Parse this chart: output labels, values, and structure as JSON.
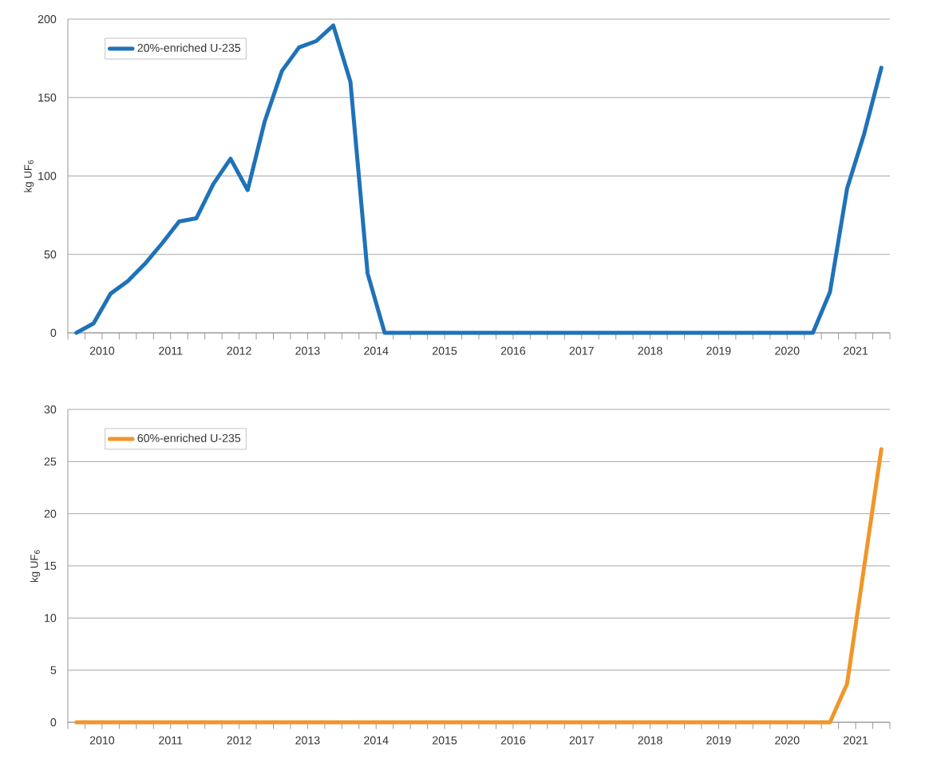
{
  "chart_data": [
    {
      "type": "line",
      "ylabel": "kg UF$_{6}$",
      "grid": "y",
      "legend": "top left",
      "xlim": [
        2010,
        2022
      ],
      "ylim": [
        0,
        200
      ],
      "yticks": [
        0,
        50,
        100,
        150,
        200
      ],
      "xticks": [
        {
          "value": 2010,
          "label": null
        },
        {
          "value": 2010.25,
          "label": null
        },
        {
          "value": 2010.5,
          "label": "2010"
        },
        {
          "value": 2010.75,
          "label": null
        },
        {
          "value": 2011,
          "label": null
        },
        {
          "value": 2011.25,
          "label": null
        },
        {
          "value": 2011.5,
          "label": "2011"
        },
        {
          "value": 2011.75,
          "label": null
        },
        {
          "value": 2012,
          "label": null
        },
        {
          "value": 2012.25,
          "label": null
        },
        {
          "value": 2012.5,
          "label": "2012"
        },
        {
          "value": 2012.75,
          "label": null
        },
        {
          "value": 2013,
          "label": null
        },
        {
          "value": 2013.25,
          "label": null
        },
        {
          "value": 2013.5,
          "label": "2013"
        },
        {
          "value": 2013.75,
          "label": null
        },
        {
          "value": 2014,
          "label": null
        },
        {
          "value": 2014.25,
          "label": null
        },
        {
          "value": 2014.5,
          "label": "2014"
        },
        {
          "value": 2014.75,
          "label": null
        },
        {
          "value": 2015,
          "label": null
        },
        {
          "value": 2015.25,
          "label": null
        },
        {
          "value": 2015.5,
          "label": "2015"
        },
        {
          "value": 2015.75,
          "label": null
        },
        {
          "value": 2016,
          "label": null
        },
        {
          "value": 2016.25,
          "label": null
        },
        {
          "value": 2016.5,
          "label": "2016"
        },
        {
          "value": 2016.75,
          "label": null
        },
        {
          "value": 2017,
          "label": null
        },
        {
          "value": 2017.25,
          "label": null
        },
        {
          "value": 2017.5,
          "label": "2017"
        },
        {
          "value": 2017.75,
          "label": null
        },
        {
          "value": 2018,
          "label": null
        },
        {
          "value": 2018.25,
          "label": null
        },
        {
          "value": 2018.5,
          "label": "2018"
        },
        {
          "value": 2018.75,
          "label": null
        },
        {
          "value": 2019,
          "label": null
        },
        {
          "value": 2019.25,
          "label": null
        },
        {
          "value": 2019.5,
          "label": "2019"
        },
        {
          "value": 2019.75,
          "label": null
        },
        {
          "value": 2020,
          "label": null
        },
        {
          "value": 2020.25,
          "label": null
        },
        {
          "value": 2020.5,
          "label": "2020"
        },
        {
          "value": 2020.75,
          "label": null
        },
        {
          "value": 2021,
          "label": null
        },
        {
          "value": 2021.25,
          "label": null
        },
        {
          "value": 2021.5,
          "label": "2021"
        },
        {
          "value": 2021.75,
          "label": null
        },
        {
          "value": 2022,
          "label": null
        }
      ],
      "series": [
        {
          "name": "20%-enriched U-235",
          "color": "#1f72b8",
          "x": [
            2010.125,
            2010.375,
            2010.625,
            2010.875,
            2011.125,
            2011.375,
            2011.625,
            2011.875,
            2012.125,
            2012.375,
            2012.625,
            2012.875,
            2013.125,
            2013.375,
            2013.625,
            2013.875,
            2014.125,
            2014.375,
            2014.625,
            2014.875,
            2015.125,
            2015.375,
            2015.625,
            2015.875,
            2016.125,
            2016.375,
            2016.625,
            2016.875,
            2017.125,
            2017.375,
            2017.625,
            2017.875,
            2018.125,
            2018.375,
            2018.625,
            2018.875,
            2019.125,
            2019.375,
            2019.625,
            2019.875,
            2020.125,
            2020.375,
            2020.625,
            2020.875,
            2021.125,
            2021.375,
            2021.625,
            2021.875
          ],
          "values": [
            0,
            6,
            25,
            33,
            44,
            57,
            71,
            73,
            95,
            111,
            91,
            135,
            167,
            182,
            186,
            196,
            160,
            38,
            0,
            0,
            0,
            0,
            0,
            0,
            0,
            0,
            0,
            0,
            0,
            0,
            0,
            0,
            0,
            0,
            0,
            0,
            0,
            0,
            0,
            0,
            0,
            0,
            0,
            0,
            26,
            92,
            127,
            169
          ]
        }
      ]
    },
    {
      "type": "line",
      "ylabel": "kg UF$_{6}$",
      "grid": "y",
      "legend": "top left",
      "xlim": [
        2010,
        2022
      ],
      "ylim": [
        0,
        30
      ],
      "yticks": [
        0,
        5,
        10,
        15,
        20,
        25,
        30
      ],
      "xticks": [
        {
          "value": 2010,
          "label": null
        },
        {
          "value": 2010.25,
          "label": null
        },
        {
          "value": 2010.5,
          "label": "2010"
        },
        {
          "value": 2010.75,
          "label": null
        },
        {
          "value": 2011,
          "label": null
        },
        {
          "value": 2011.25,
          "label": null
        },
        {
          "value": 2011.5,
          "label": "2011"
        },
        {
          "value": 2011.75,
          "label": null
        },
        {
          "value": 2012,
          "label": null
        },
        {
          "value": 2012.25,
          "label": null
        },
        {
          "value": 2012.5,
          "label": "2012"
        },
        {
          "value": 2012.75,
          "label": null
        },
        {
          "value": 2013,
          "label": null
        },
        {
          "value": 2013.25,
          "label": null
        },
        {
          "value": 2013.5,
          "label": "2013"
        },
        {
          "value": 2013.75,
          "label": null
        },
        {
          "value": 2014,
          "label": null
        },
        {
          "value": 2014.25,
          "label": null
        },
        {
          "value": 2014.5,
          "label": "2014"
        },
        {
          "value": 2014.75,
          "label": null
        },
        {
          "value": 2015,
          "label": null
        },
        {
          "value": 2015.25,
          "label": null
        },
        {
          "value": 2015.5,
          "label": "2015"
        },
        {
          "value": 2015.75,
          "label": null
        },
        {
          "value": 2016,
          "label": null
        },
        {
          "value": 2016.25,
          "label": null
        },
        {
          "value": 2016.5,
          "label": "2016"
        },
        {
          "value": 2016.75,
          "label": null
        },
        {
          "value": 2017,
          "label": null
        },
        {
          "value": 2017.25,
          "label": null
        },
        {
          "value": 2017.5,
          "label": "2017"
        },
        {
          "value": 2017.75,
          "label": null
        },
        {
          "value": 2018,
          "label": null
        },
        {
          "value": 2018.25,
          "label": null
        },
        {
          "value": 2018.5,
          "label": "2018"
        },
        {
          "value": 2018.75,
          "label": null
        },
        {
          "value": 2019,
          "label": null
        },
        {
          "value": 2019.25,
          "label": null
        },
        {
          "value": 2019.5,
          "label": "2019"
        },
        {
          "value": 2019.75,
          "label": null
        },
        {
          "value": 2020,
          "label": null
        },
        {
          "value": 2020.25,
          "label": null
        },
        {
          "value": 2020.5,
          "label": "2020"
        },
        {
          "value": 2020.75,
          "label": null
        },
        {
          "value": 2021,
          "label": null
        },
        {
          "value": 2021.25,
          "label": null
        },
        {
          "value": 2021.5,
          "label": "2021"
        },
        {
          "value": 2021.75,
          "label": null
        },
        {
          "value": 2022,
          "label": null
        }
      ],
      "series": [
        {
          "name": "60%-enriched U-235",
          "color": "#f0962a",
          "x": [
            2010.125,
            2010.375,
            2010.625,
            2010.875,
            2011.125,
            2011.375,
            2011.625,
            2011.875,
            2012.125,
            2012.375,
            2012.625,
            2012.875,
            2013.125,
            2013.375,
            2013.625,
            2013.875,
            2014.125,
            2014.375,
            2014.625,
            2014.875,
            2015.125,
            2015.375,
            2015.625,
            2015.875,
            2016.125,
            2016.375,
            2016.625,
            2016.875,
            2017.125,
            2017.375,
            2017.625,
            2017.875,
            2018.125,
            2018.375,
            2018.625,
            2018.875,
            2019.125,
            2019.375,
            2019.625,
            2019.875,
            2020.125,
            2020.375,
            2020.625,
            2020.875,
            2021.125,
            2021.375,
            2021.875
          ],
          "values": [
            0,
            0,
            0,
            0,
            0,
            0,
            0,
            0,
            0,
            0,
            0,
            0,
            0,
            0,
            0,
            0,
            0,
            0,
            0,
            0,
            0,
            0,
            0,
            0,
            0,
            0,
            0,
            0,
            0,
            0,
            0,
            0,
            0,
            0,
            0,
            0,
            0,
            0,
            0,
            0,
            0,
            0,
            0,
            0,
            0,
            3.7,
            26.2
          ]
        }
      ]
    }
  ]
}
